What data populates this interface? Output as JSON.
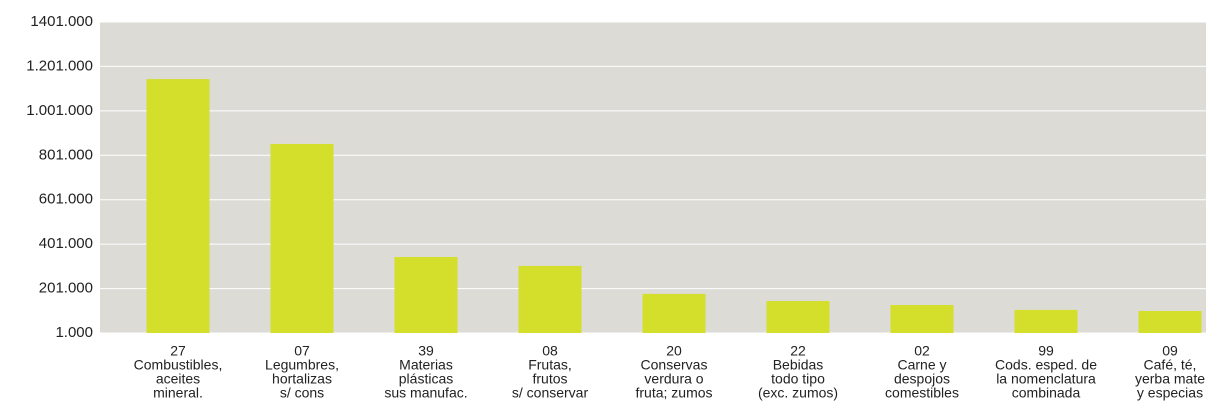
{
  "chart_data": {
    "type": "bar",
    "categories": [
      [
        "27",
        "Combustibles,",
        "aceites",
        "mineral."
      ],
      [
        "07",
        "Legumbres,",
        "hortalizas",
        "s/ cons"
      ],
      [
        "39",
        "Materias",
        "plásticas",
        "sus manufac."
      ],
      [
        "08",
        "Frutas,",
        "frutos",
        "s/ conservar"
      ],
      [
        "20",
        "Conservas",
        "verdura o",
        "fruta; zumos"
      ],
      [
        "22",
        "Bebidas",
        "todo tipo",
        "(exc. zumos)"
      ],
      [
        "02",
        "Carne y",
        "despojos",
        "comestibles"
      ],
      [
        "99",
        "Cods. esped. de",
        "la nomenclatura",
        "combinada"
      ],
      [
        "09",
        "Café, té,",
        "yerba mate",
        "y especias"
      ]
    ],
    "values": [
      1144000,
      852000,
      343000,
      303000,
      177000,
      145000,
      127000,
      105000,
      100000
    ],
    "color": "#d4df2b",
    "ylim": [
      1000,
      1401000
    ],
    "yticks": [
      {
        "value": 1000,
        "label": "1.000"
      },
      {
        "value": 201000,
        "label": "201.000"
      },
      {
        "value": 401000,
        "label": "401.000"
      },
      {
        "value": 601000,
        "label": "601.000"
      },
      {
        "value": 801000,
        "label": "801.000"
      },
      {
        "value": 1001000,
        "label": "1.001.000"
      },
      {
        "value": 1201000,
        "label": "1.201.000"
      },
      {
        "value": 1401000,
        "label": "1401.000"
      }
    ],
    "grid": true
  }
}
